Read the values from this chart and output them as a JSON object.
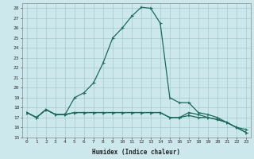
{
  "xlabel": "Humidex (Indice chaleur)",
  "bg_color": "#cce8ec",
  "grid_color": "#aacfd4",
  "line_color": "#1a6b5a",
  "xlim": [
    -0.5,
    23.5
  ],
  "ylim": [
    15,
    28.5
  ],
  "yticks": [
    15,
    16,
    17,
    18,
    19,
    20,
    21,
    22,
    23,
    24,
    25,
    26,
    27,
    28
  ],
  "xticks": [
    0,
    1,
    2,
    3,
    4,
    5,
    6,
    7,
    8,
    9,
    10,
    11,
    12,
    13,
    14,
    15,
    16,
    17,
    18,
    19,
    20,
    21,
    22,
    23
  ],
  "line1": [
    17.5,
    17.0,
    17.8,
    17.3,
    17.3,
    17.5,
    17.5,
    17.5,
    17.5,
    17.5,
    17.5,
    17.5,
    17.5,
    17.5,
    17.5,
    17.0,
    17.0,
    17.2,
    17.0,
    17.0,
    16.8,
    16.5,
    16.0,
    15.5
  ],
  "line2": [
    17.5,
    17.0,
    17.8,
    17.3,
    17.3,
    17.5,
    17.5,
    17.5,
    17.5,
    17.5,
    17.5,
    17.5,
    17.5,
    17.5,
    17.5,
    17.0,
    17.0,
    17.5,
    17.3,
    17.0,
    16.8,
    16.5,
    16.0,
    15.8
  ],
  "line3": [
    17.5,
    17.0,
    17.8,
    17.3,
    17.3,
    19.0,
    19.5,
    20.5,
    22.5,
    25.0,
    26.0,
    27.2,
    28.1,
    28.0,
    26.5,
    19.0,
    18.5,
    18.5,
    17.5,
    17.3,
    17.0,
    16.5,
    16.0,
    15.5
  ]
}
